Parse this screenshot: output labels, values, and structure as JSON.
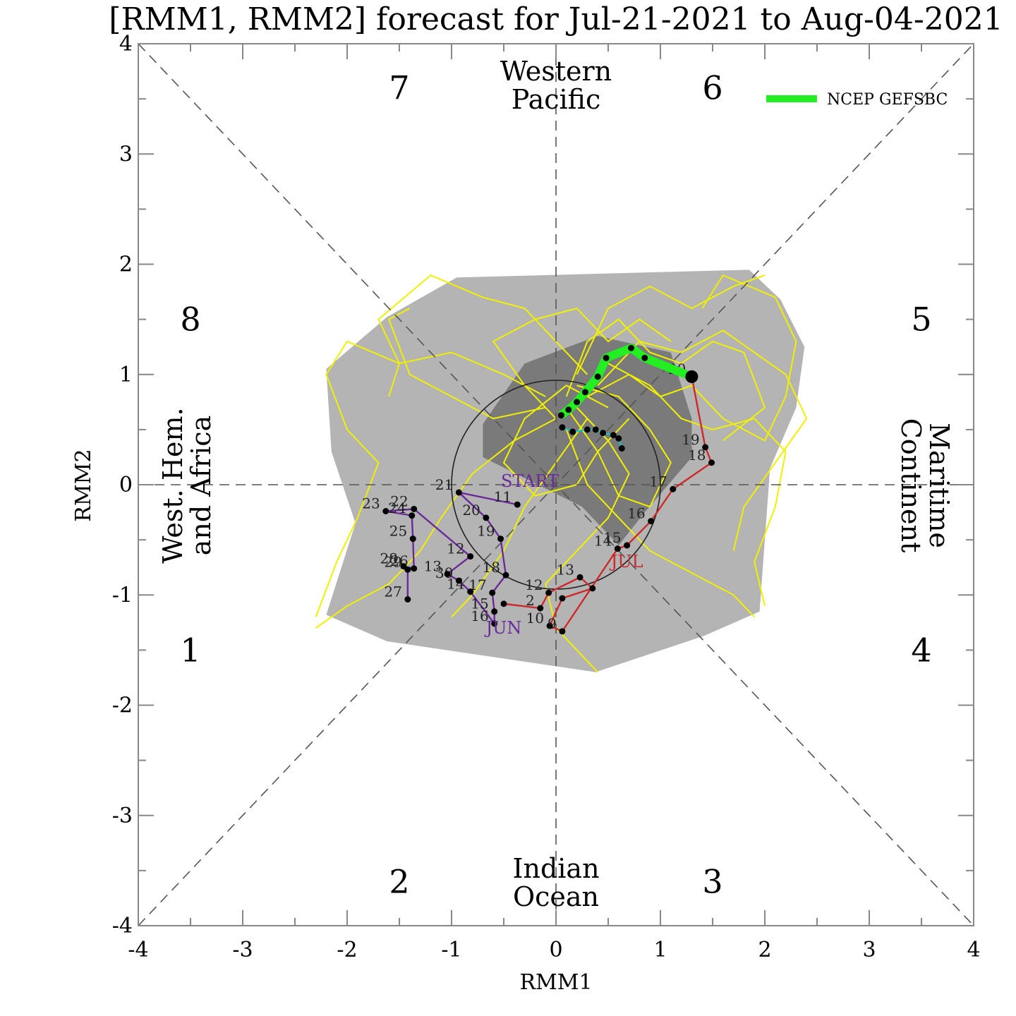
{
  "chart_data": {
    "type": "scatter",
    "title": "[RMM1, RMM2] forecast for Jul-21-2021 to Aug-04-2021",
    "xlabel": "RMM1",
    "ylabel": "RMM2",
    "xlim": [
      -4,
      4
    ],
    "ylim": [
      -4,
      4
    ],
    "x_ticks": [
      "-4",
      "-3",
      "-2",
      "-1",
      "0",
      "1",
      "2",
      "3",
      "4"
    ],
    "y_ticks": [
      "-4",
      "-3",
      "-2",
      "-1",
      "0",
      "1",
      "2",
      "3",
      "4"
    ],
    "grid": false,
    "legend_position": "top-right",
    "legend": [
      {
        "name": "NCEP GEFSBC",
        "color": "#22ee22"
      }
    ],
    "phases": [
      {
        "label": "1",
        "x": -3.5,
        "y": -1.5
      },
      {
        "label": "2",
        "x": -1.5,
        "y": -3.6
      },
      {
        "label": "3",
        "x": 1.5,
        "y": -3.6
      },
      {
        "label": "4",
        "x": 3.5,
        "y": -1.5
      },
      {
        "label": "5",
        "x": 3.5,
        "y": 1.5
      },
      {
        "label": "6",
        "x": 1.5,
        "y": 3.6
      },
      {
        "label": "7",
        "x": -1.5,
        "y": 3.6
      },
      {
        "label": "8",
        "x": -3.5,
        "y": 1.5
      }
    ],
    "regions": {
      "top": [
        "Western",
        "Pacific"
      ],
      "bottom": [
        "Indian",
        "Ocean"
      ],
      "left": [
        "West. Hem.",
        "and Africa"
      ],
      "right": [
        "Maritime",
        "Continent"
      ]
    },
    "unit_circle_radius": 1,
    "month_labels": [
      {
        "text": "START",
        "x": -0.25,
        "y": -0.02,
        "color": "#6a2a9a"
      },
      {
        "text": "JUN",
        "x": -0.5,
        "y": -1.35,
        "color": "#6a2a9a"
      },
      {
        "text": "JUL",
        "x": 0.68,
        "y": -0.75,
        "color": "#cc2a2a"
      }
    ],
    "series": [
      {
        "name": "Jun",
        "color": "#6a2a9a",
        "points": [
          {
            "x": -0.37,
            "y": -0.18,
            "label": "11"
          },
          {
            "x": -0.93,
            "y": -0.07,
            "label": "21"
          },
          {
            "x": -0.67,
            "y": -0.3,
            "label": "20"
          },
          {
            "x": -0.53,
            "y": -0.49,
            "label": "19"
          },
          {
            "x": -0.48,
            "y": -0.82,
            "label": "18"
          },
          {
            "x": -0.61,
            "y": -0.98,
            "label": "17"
          },
          {
            "x": -0.59,
            "y": -1.15,
            "label": "15"
          },
          {
            "x": -0.59,
            "y": -1.26,
            "label": "16"
          },
          {
            "x": -0.82,
            "y": -0.97,
            "label": "14"
          },
          {
            "x": -0.93,
            "y": -0.87,
            "label": "30"
          },
          {
            "x": -1.04,
            "y": -0.81,
            "label": "13"
          },
          {
            "x": -0.82,
            "y": -0.65,
            "label": "12"
          },
          {
            "x": -1.36,
            "y": -0.22,
            "label": "22"
          },
          {
            "x": -1.63,
            "y": -0.24,
            "label": "23"
          },
          {
            "x": -1.38,
            "y": -0.28,
            "label": "24"
          },
          {
            "x": -1.37,
            "y": -0.49,
            "label": "25"
          },
          {
            "x": -1.36,
            "y": -0.76,
            "label": "26"
          },
          {
            "x": -1.46,
            "y": -0.74,
            "label": "28"
          },
          {
            "x": -1.42,
            "y": -0.77,
            "label": "29"
          },
          {
            "x": -1.42,
            "y": -1.04,
            "label": "27"
          }
        ]
      },
      {
        "name": "Jul",
        "color": "#cc2a2a",
        "points": [
          {
            "x": -0.5,
            "y": -1.08,
            "label": ""
          },
          {
            "x": -0.15,
            "y": -1.12,
            "label": "2"
          },
          {
            "x": -0.07,
            "y": -0.98,
            "label": "12"
          },
          {
            "x": 0.23,
            "y": -0.84,
            "label": "13"
          },
          {
            "x": 0.35,
            "y": -0.94,
            "label": ""
          },
          {
            "x": 0.06,
            "y": -1.03,
            "label": ""
          },
          {
            "x": -0.06,
            "y": -1.28,
            "label": "10"
          },
          {
            "x": 0.06,
            "y": -1.33,
            "label": "9"
          },
          {
            "x": 0.59,
            "y": -0.58,
            "label": "14"
          },
          {
            "x": 0.68,
            "y": -0.55,
            "label": "15"
          },
          {
            "x": 0.91,
            "y": -0.33,
            "label": "16"
          },
          {
            "x": 1.12,
            "y": -0.04,
            "label": "17"
          },
          {
            "x": 1.49,
            "y": 0.2,
            "label": "18"
          },
          {
            "x": 1.43,
            "y": 0.34,
            "label": "19"
          },
          {
            "x": 1.3,
            "y": 0.98,
            "label": "20"
          }
        ]
      },
      {
        "name": "NCEP GEFSBC",
        "color": "#22ee22",
        "points": [
          {
            "x": 1.3,
            "y": 0.98
          },
          {
            "x": 0.85,
            "y": 1.15
          },
          {
            "x": 0.72,
            "y": 1.24
          },
          {
            "x": 0.48,
            "y": 1.15
          },
          {
            "x": 0.4,
            "y": 0.98
          },
          {
            "x": 0.28,
            "y": 0.84
          },
          {
            "x": 0.2,
            "y": 0.75
          },
          {
            "x": 0.12,
            "y": 0.68
          },
          {
            "x": 0.05,
            "y": 0.63
          }
        ]
      },
      {
        "name": "forecast-tail",
        "color": "#00cccc",
        "points": [
          {
            "x": 0.06,
            "y": 0.52
          },
          {
            "x": 0.16,
            "y": 0.48
          },
          {
            "x": 0.3,
            "y": 0.5
          },
          {
            "x": 0.38,
            "y": 0.5
          },
          {
            "x": 0.45,
            "y": 0.47
          },
          {
            "x": 0.55,
            "y": 0.45
          },
          {
            "x": 0.6,
            "y": 0.42
          },
          {
            "x": 0.63,
            "y": 0.33
          }
        ]
      }
    ],
    "spread_outer": [
      [
        -0.95,
        1.88
      ],
      [
        1.85,
        1.95
      ],
      [
        2.15,
        1.68
      ],
      [
        2.38,
        1.25
      ],
      [
        2.3,
        0.7
      ],
      [
        2.05,
        0.15
      ],
      [
        1.95,
        -1.15
      ],
      [
        1.42,
        -1.37
      ],
      [
        0.38,
        -1.7
      ],
      [
        -1.62,
        -1.42
      ],
      [
        -2.2,
        -1.18
      ],
      [
        -1.92,
        -0.35
      ],
      [
        -2.15,
        0.3
      ],
      [
        -2.2,
        1.05
      ],
      [
        -1.62,
        1.52
      ]
    ],
    "spread_inner": [
      [
        0.4,
        1.35
      ],
      [
        1.1,
        1.2
      ],
      [
        1.3,
        0.6
      ],
      [
        1.3,
        0.25
      ],
      [
        0.85,
        -0.25
      ],
      [
        0.6,
        -0.55
      ],
      [
        0.25,
        -0.2
      ],
      [
        -0.7,
        0.25
      ],
      [
        -0.7,
        0.55
      ],
      [
        -0.3,
        1.1
      ]
    ],
    "ensemble": [
      [
        [
          0.1,
          0.8
        ],
        [
          0.3,
          1.3
        ],
        [
          0.6,
          1.5
        ],
        [
          0.9,
          1.2
        ],
        [
          1.2,
          1.1
        ],
        [
          1.5,
          1.3
        ],
        [
          1.8,
          1.2
        ],
        [
          2.0,
          0.7
        ],
        [
          1.6,
          0.4
        ]
      ],
      [
        [
          0.0,
          0.6
        ],
        [
          -0.3,
          0.9
        ],
        [
          -0.6,
          1.3
        ],
        [
          -0.2,
          1.5
        ],
        [
          0.2,
          1.6
        ],
        [
          0.5,
          1.3
        ],
        [
          0.8,
          1.5
        ],
        [
          1.1,
          1.3
        ]
      ],
      [
        [
          0.1,
          0.7
        ],
        [
          0.4,
          0.3
        ],
        [
          0.2,
          0.0
        ],
        [
          -0.2,
          -0.1
        ],
        [
          -0.5,
          0.2
        ],
        [
          -0.3,
          0.6
        ],
        [
          0.1,
          0.9
        ],
        [
          0.5,
          0.7
        ]
      ],
      [
        [
          0.2,
          0.9
        ],
        [
          0.6,
          0.8
        ],
        [
          0.9,
          0.5
        ],
        [
          1.1,
          0.2
        ],
        [
          0.9,
          -0.2
        ],
        [
          0.6,
          -0.1
        ],
        [
          0.4,
          0.3
        ],
        [
          0.7,
          0.6
        ]
      ],
      [
        [
          -0.1,
          0.8
        ],
        [
          -0.5,
          1.0
        ],
        [
          -1.0,
          1.2
        ],
        [
          -1.5,
          1.1
        ],
        [
          -2.0,
          1.3
        ],
        [
          -2.2,
          1.0
        ],
        [
          -2.0,
          0.5
        ],
        [
          -1.7,
          0.2
        ],
        [
          -1.9,
          -0.3
        ],
        [
          -2.1,
          -0.7
        ],
        [
          -2.3,
          -1.2
        ]
      ],
      [
        [
          0.3,
          1.0
        ],
        [
          0.0,
          1.3
        ],
        [
          -0.3,
          1.6
        ],
        [
          -0.7,
          1.7
        ],
        [
          -1.2,
          1.9
        ],
        [
          -1.7,
          1.5
        ],
        [
          -1.5,
          1.1
        ],
        [
          -1.6,
          0.8
        ]
      ],
      [
        [
          0.3,
          0.8
        ],
        [
          0.7,
          1.0
        ],
        [
          1.0,
          0.8
        ],
        [
          1.3,
          0.9
        ],
        [
          1.6,
          0.6
        ],
        [
          2.0,
          0.4
        ],
        [
          2.2,
          0.8
        ],
        [
          2.3,
          1.3
        ],
        [
          2.1,
          1.7
        ],
        [
          1.6,
          1.9
        ],
        [
          1.4,
          1.6
        ]
      ],
      [
        [
          0.2,
          0.7
        ],
        [
          0.5,
          0.4
        ],
        [
          0.7,
          0.1
        ],
        [
          0.5,
          -0.3
        ],
        [
          0.2,
          -0.6
        ],
        [
          -0.1,
          -0.9
        ],
        [
          0.0,
          -1.3
        ],
        [
          0.3,
          -1.6
        ],
        [
          0.4,
          -1.7
        ]
      ],
      [
        [
          0.0,
          0.6
        ],
        [
          -0.4,
          0.4
        ],
        [
          -0.8,
          0.1
        ],
        [
          -1.1,
          -0.3
        ],
        [
          -1.3,
          -0.6
        ],
        [
          -1.6,
          -0.9
        ],
        [
          -2.0,
          -1.1
        ],
        [
          -2.3,
          -1.3
        ]
      ],
      [
        [
          0.4,
          0.9
        ],
        [
          0.8,
          1.3
        ],
        [
          1.2,
          1.2
        ],
        [
          1.6,
          1.4
        ],
        [
          1.9,
          1.2
        ],
        [
          2.2,
          1.0
        ],
        [
          2.4,
          0.6
        ],
        [
          2.1,
          0.2
        ],
        [
          1.8,
          -0.2
        ],
        [
          1.7,
          -0.6
        ]
      ],
      [
        [
          0.1,
          0.5
        ],
        [
          0.3,
          0.0
        ],
        [
          0.6,
          -0.3
        ],
        [
          0.9,
          -0.6
        ],
        [
          1.3,
          -0.8
        ],
        [
          1.7,
          -1.0
        ],
        [
          1.9,
          -1.2
        ]
      ],
      [
        [
          0.2,
          1.0
        ],
        [
          0.5,
          1.6
        ],
        [
          0.9,
          1.8
        ],
        [
          1.3,
          1.6
        ],
        [
          1.7,
          1.8
        ],
        [
          2.0,
          1.9
        ]
      ],
      [
        [
          -0.1,
          0.7
        ],
        [
          -0.6,
          0.6
        ],
        [
          -1.0,
          0.8
        ],
        [
          -1.4,
          1.0
        ],
        [
          -1.6,
          1.5
        ],
        [
          -1.4,
          1.6
        ]
      ],
      [
        [
          0.3,
          0.6
        ],
        [
          0.0,
          0.2
        ],
        [
          -0.3,
          -0.2
        ],
        [
          -0.5,
          -0.6
        ],
        [
          -0.8,
          -1.0
        ],
        [
          -1.0,
          -1.2
        ]
      ],
      [
        [
          0.5,
          1.1
        ],
        [
          0.9,
          0.9
        ],
        [
          1.2,
          0.6
        ],
        [
          1.5,
          0.5
        ],
        [
          1.9,
          0.6
        ],
        [
          2.2,
          0.3
        ],
        [
          2.1,
          -0.2
        ],
        [
          1.9,
          -0.7
        ],
        [
          2.0,
          -1.1
        ]
      ]
    ]
  }
}
